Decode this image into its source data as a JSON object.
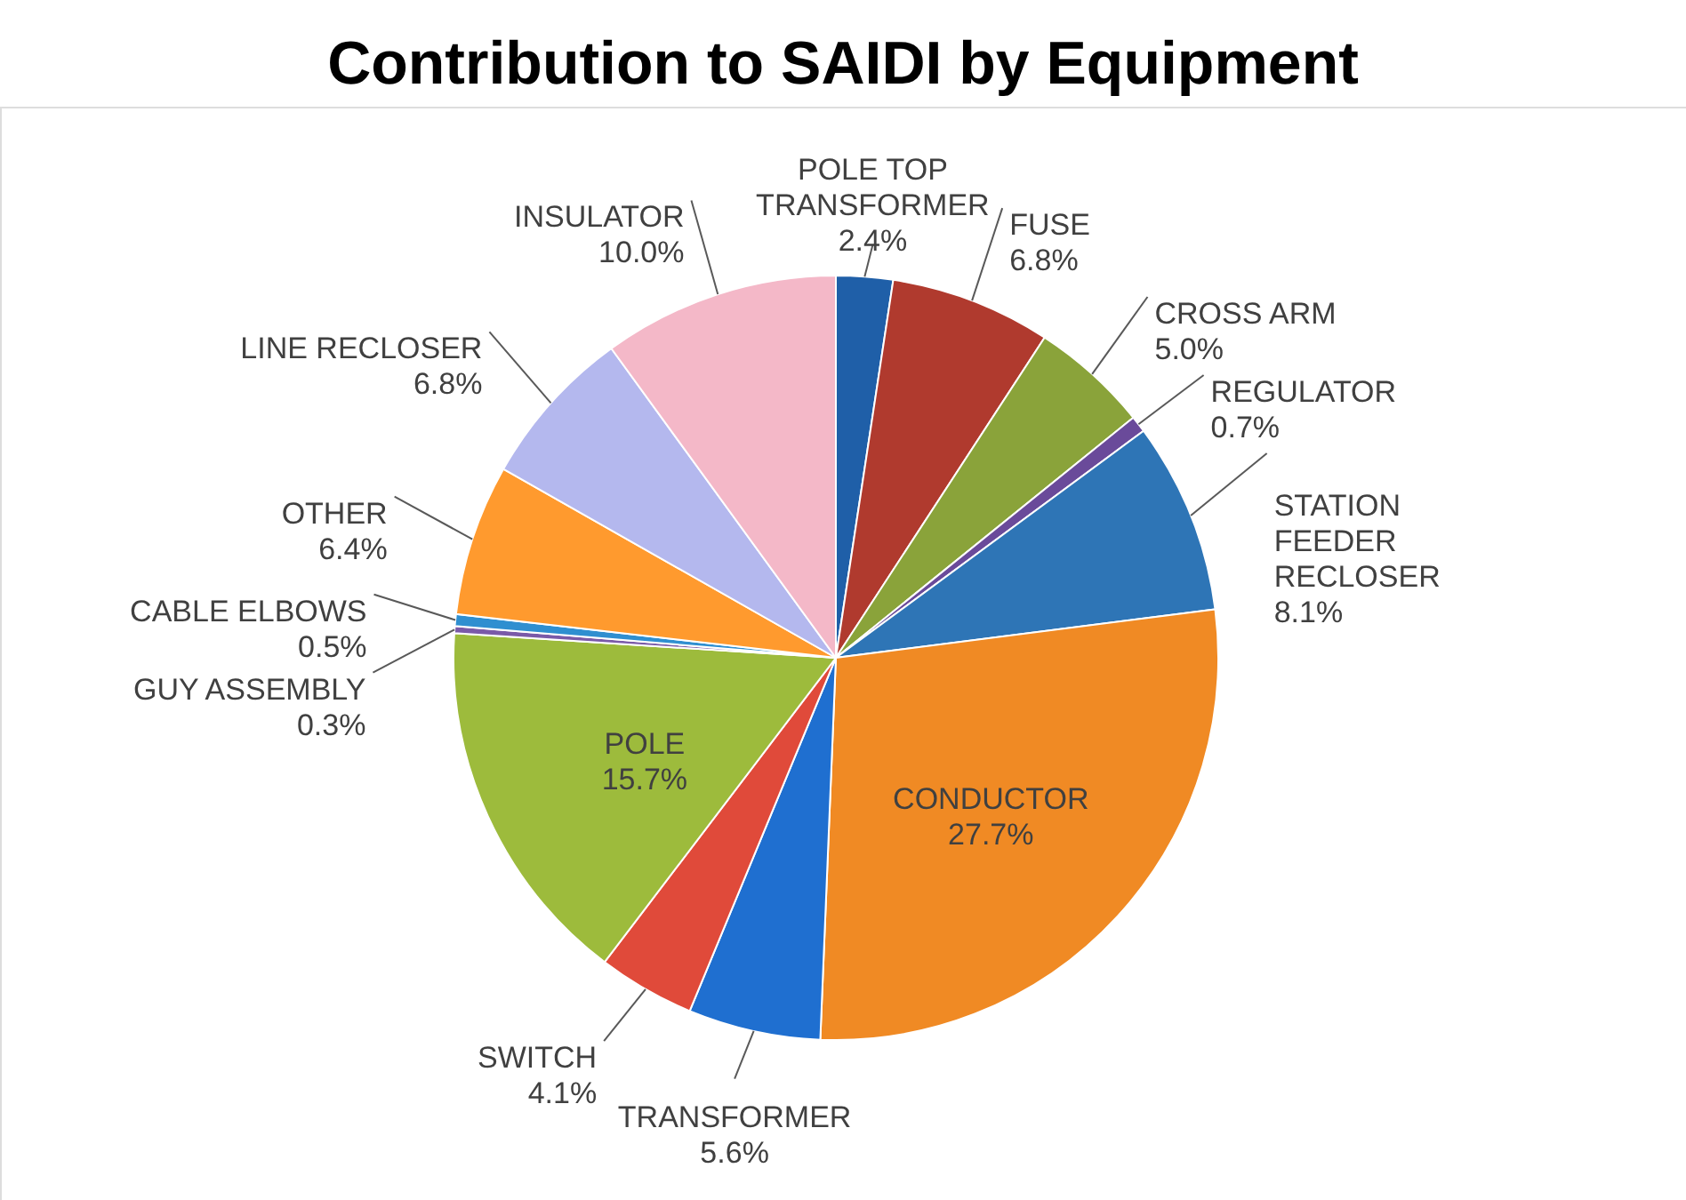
{
  "chart_data": {
    "type": "pie",
    "title": "Contribution to SAIDI by Equipment",
    "categories": [
      "POLE TOP\nTRANSFORMER",
      "FUSE",
      "CROSS ARM",
      "REGULATOR",
      "STATION\nFEEDER\nRECLOSER",
      "CONDUCTOR",
      "TRANSFORMER",
      "SWITCH",
      "POLE",
      "GUY ASSEMBLY",
      "CABLE ELBOWS",
      "OTHER",
      "LINE RECLOSER",
      "INSULATOR"
    ],
    "values": [
      2.4,
      6.8,
      5.0,
      0.7,
      8.1,
      27.7,
      5.6,
      4.1,
      15.7,
      0.3,
      0.5,
      6.4,
      6.8,
      10.0
    ],
    "value_labels": [
      "2.4%",
      "6.8%",
      "5.0%",
      "0.7%",
      "8.1%",
      "27.7%",
      "5.6%",
      "4.1%",
      "15.7%",
      "0.3%",
      "0.5%",
      "6.4%",
      "6.8%",
      "10.0%"
    ],
    "colors": [
      "#1f5fa8",
      "#b03a2e",
      "#8aa33a",
      "#6a4a9a",
      "#2e75b6",
      "#f08a24",
      "#1f6fd0",
      "#e04a3a",
      "#9dbb3c",
      "#7a5aa8",
      "#2f8fd0",
      "#ff9a2e",
      "#b4b8ee",
      "#f4b8c8"
    ]
  }
}
